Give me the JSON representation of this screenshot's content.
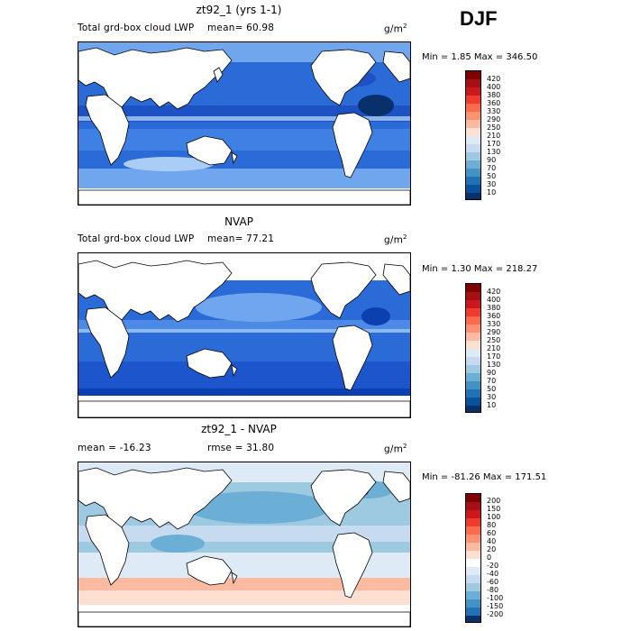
{
  "season": "DJF",
  "panels": [
    {
      "title": "zt92_1 (yrs 1-1)",
      "left_label": "Total grd-box cloud LWP",
      "mean_label": "mean=  60.98",
      "unit": "g/m",
      "unit_exp": "2",
      "minmax": "Min =    1.85 Max = 346.50",
      "colorbar_labels": [
        "420",
        "400",
        "380",
        "360",
        "330",
        "290",
        "250",
        "210",
        "170",
        "130",
        "90",
        "70",
        "50",
        "30",
        "10"
      ]
    },
    {
      "title": "NVAP",
      "left_label": "Total grd-box cloud LWP",
      "mean_label": "mean=  77.21",
      "unit": "g/m",
      "unit_exp": "2",
      "minmax": "Min =    1.30 Max = 218.27",
      "colorbar_labels": [
        "420",
        "400",
        "380",
        "360",
        "330",
        "290",
        "250",
        "210",
        "170",
        "130",
        "90",
        "70",
        "50",
        "30",
        "10"
      ]
    },
    {
      "title": "zt92_1 - NVAP",
      "left_label": "mean = -16.23",
      "mean_label": "rmse =  31.80",
      "unit": "g/m",
      "unit_exp": "2",
      "minmax": "Min = -81.26 Max = 171.51",
      "colorbar_labels": [
        "200",
        "150",
        "100",
        "80",
        "60",
        "40",
        "20",
        "0",
        "-20",
        "-40",
        "-60",
        "-80",
        "-100",
        "-150",
        "-200"
      ]
    }
  ],
  "colors": {
    "abs_scale": [
      "#7f0000",
      "#a50f15",
      "#cb181d",
      "#ef3b2c",
      "#fb6a4a",
      "#fc9272",
      "#fcbba1",
      "#fee0d2",
      "#deebf7",
      "#c6dbef",
      "#9ecae1",
      "#6baed6",
      "#4292c6",
      "#2171b5",
      "#08519c",
      "#08306b"
    ],
    "diff_scale": [
      "#7f0000",
      "#a50f15",
      "#cb181d",
      "#ef3b2c",
      "#fb6a4a",
      "#fc9272",
      "#fcbba1",
      "#fee0d2",
      "#ffffff",
      "#deebf7",
      "#c6dbef",
      "#9ecae1",
      "#6baed6",
      "#4292c6",
      "#2171b5",
      "#08306b"
    ]
  }
}
